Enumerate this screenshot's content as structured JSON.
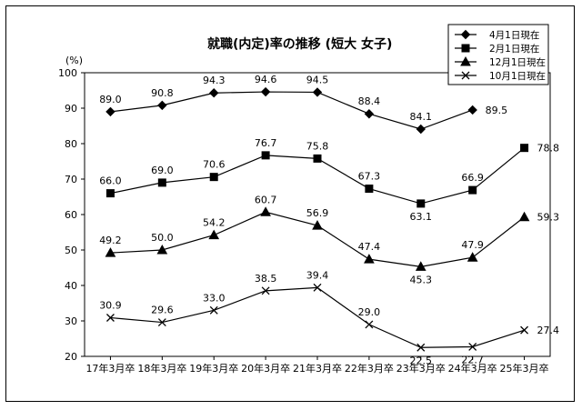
{
  "chart_data": {
    "type": "line",
    "title": "就職(内定)率の推移 (短大 女子)",
    "ylabel": "(%)",
    "xlabel": "",
    "ylim": [
      20,
      100
    ],
    "yticks": [
      20,
      30,
      40,
      50,
      60,
      70,
      80,
      90,
      100
    ],
    "grid": false,
    "legend_position": "top-right",
    "categories": [
      "17年3月卒",
      "18年3月卒",
      "19年3月卒",
      "20年3月卒",
      "21年3月卒",
      "22年3月卒",
      "23年3月卒",
      "24年3月卒",
      "25年3月卒"
    ],
    "series": [
      {
        "name": "4月1日現在",
        "marker": "diamond",
        "values": [
          89.0,
          90.8,
          94.3,
          94.6,
          94.5,
          88.4,
          84.1,
          89.5,
          null
        ],
        "labels": [
          "89.0",
          "90.8",
          "94.3",
          "94.6",
          "94.5",
          "88.4",
          "84.1",
          "89.5",
          ""
        ]
      },
      {
        "name": "2月1日現在",
        "marker": "square",
        "values": [
          66.0,
          69.0,
          70.6,
          76.7,
          75.8,
          67.3,
          63.1,
          66.9,
          78.8
        ],
        "labels": [
          "66.0",
          "69.0",
          "70.6",
          "76.7",
          "75.8",
          "67.3",
          "63.1",
          "66.9",
          "78.8"
        ]
      },
      {
        "name": "12月1日現在",
        "marker": "triangle",
        "values": [
          49.2,
          50.0,
          54.2,
          60.7,
          56.9,
          47.4,
          45.3,
          47.9,
          59.3
        ],
        "labels": [
          "49.2",
          "50.0",
          "54.2",
          "60.7",
          "56.9",
          "47.4",
          "45.3",
          "47.9",
          "59.3"
        ]
      },
      {
        "name": "10月1日現在",
        "marker": "x",
        "values": [
          30.9,
          29.6,
          33.0,
          38.5,
          39.4,
          29.0,
          22.5,
          22.7,
          27.4
        ],
        "labels": [
          "30.9",
          "29.6",
          "33.0",
          "38.5",
          "39.4",
          "29.0",
          "22.5",
          "22.7",
          "27.4"
        ]
      }
    ],
    "colors": {
      "line": "#000000",
      "background": "#ffffff"
    }
  }
}
